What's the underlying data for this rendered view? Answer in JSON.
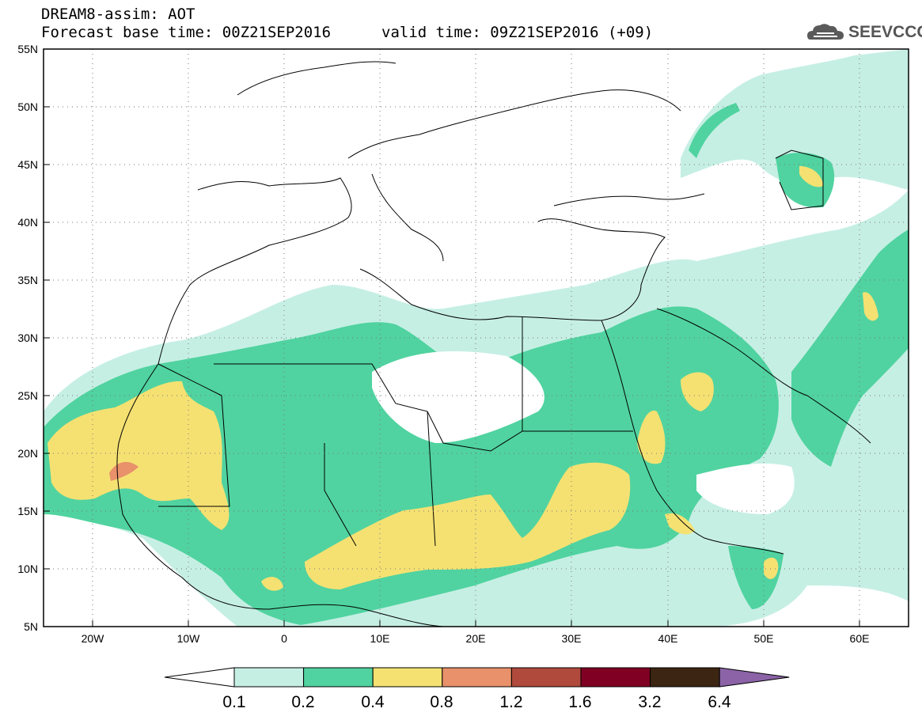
{
  "header": {
    "title": "DREAM8-assim: AOT",
    "base_time": "Forecast base time: 00Z21SEP2016",
    "valid_time": "valid time: 09Z21SEP2016 (+09)",
    "logo_text": "SEEVCCC"
  },
  "map": {
    "lon_range": [
      -25,
      65
    ],
    "lat_range": [
      5,
      55
    ],
    "lat_labels": [
      "55N",
      "50N",
      "45N",
      "40N",
      "35N",
      "30N",
      "25N",
      "20N",
      "15N",
      "10N",
      "5N"
    ],
    "lon_labels": [
      "20W",
      "10W",
      "0",
      "10E",
      "20E",
      "30E",
      "40E",
      "50E",
      "60E"
    ],
    "grid": "dotted"
  },
  "legend": {
    "colors": [
      "#ffffff",
      "#c6efe4",
      "#50d3a0",
      "#f5e172",
      "#e8916a",
      "#b04a3c",
      "#7f0022",
      "#3c2512",
      "#8b63a6"
    ],
    "values": [
      "0.1",
      "0.2",
      "0.4",
      "0.8",
      "1.2",
      "1.6",
      "3.2",
      "6.4"
    ]
  }
}
